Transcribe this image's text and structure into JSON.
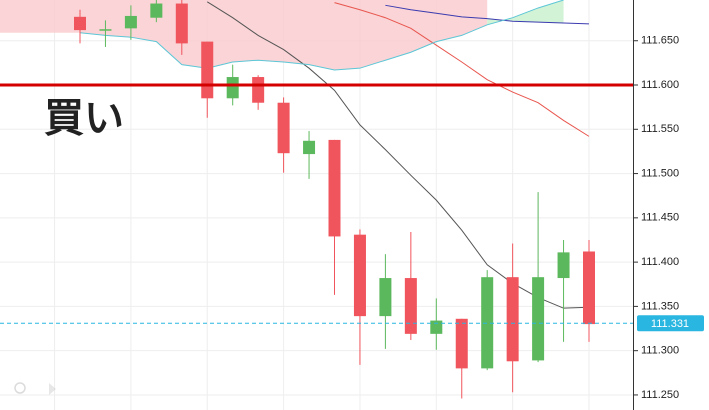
{
  "chart_data": {
    "type": "candlestick",
    "candles": {
      "open": [
        111.677,
        111.663,
        111.664,
        111.676,
        111.692,
        111.649,
        111.585,
        111.609,
        111.58,
        111.522,
        111.538,
        111.431,
        111.339,
        111.382,
        111.319,
        111.336,
        111.28,
        111.383,
        111.289,
        111.382,
        111.412
      ],
      "high": [
        111.685,
        111.673,
        111.69,
        111.696,
        111.696,
        111.649,
        111.623,
        111.611,
        111.586,
        111.548,
        111.538,
        111.437,
        111.409,
        111.434,
        111.359,
        111.336,
        111.391,
        111.421,
        111.479,
        111.425,
        111.425
      ],
      "low": [
        111.647,
        111.643,
        111.651,
        111.671,
        111.634,
        111.563,
        111.577,
        111.572,
        111.501,
        111.494,
        111.363,
        111.284,
        111.302,
        111.312,
        111.301,
        111.246,
        111.278,
        111.253,
        111.287,
        111.31,
        111.31
      ],
      "close": [
        111.662,
        111.663,
        111.678,
        111.692,
        111.647,
        111.585,
        111.609,
        111.58,
        111.523,
        111.537,
        111.429,
        111.339,
        111.382,
        111.319,
        111.334,
        111.28,
        111.383,
        111.288,
        111.383,
        111.411,
        111.33
      ],
      "up_color": "#5cb85c",
      "down_color": "#f0545c"
    },
    "lines": [
      {
        "color": "#555555",
        "values": [
          null,
          null,
          null,
          null,
          null,
          111.694,
          111.676,
          111.656,
          111.64,
          111.619,
          111.594,
          111.555,
          111.527,
          111.498,
          111.47,
          111.436,
          111.397,
          111.376,
          111.36,
          111.348,
          111.349
        ]
      },
      {
        "color": "#e8554e",
        "values": [
          null,
          null,
          null,
          null,
          null,
          null,
          null,
          null,
          null,
          null,
          111.693,
          111.685,
          111.676,
          111.664,
          111.645,
          111.626,
          111.606,
          111.592,
          111.58,
          111.56,
          111.542
        ]
      },
      {
        "color": "#3b3bb0",
        "values": [
          null,
          null,
          null,
          null,
          null,
          null,
          null,
          null,
          null,
          null,
          null,
          null,
          111.69,
          111.685,
          111.681,
          111.677,
          111.675,
          111.672,
          111.671,
          111.67,
          111.669
        ]
      },
      {
        "color": "#5cc6d6",
        "values": [
          111.659,
          111.656,
          111.654,
          111.649,
          111.623,
          111.619,
          111.626,
          111.628,
          111.626,
          111.623,
          111.617,
          111.619,
          111.628,
          111.637,
          111.649,
          111.656,
          111.668,
          111.676,
          111.687,
          111.696,
          null
        ]
      }
    ],
    "ylim": [
      111.233,
      111.696
    ],
    "yticks": [
      {
        "value": 111.25,
        "label": "111.250"
      },
      {
        "value": 111.3,
        "label": "111.300"
      },
      {
        "value": 111.35,
        "label": "111.350"
      },
      {
        "value": 111.4,
        "label": "111.400"
      },
      {
        "value": 111.45,
        "label": "111.450"
      },
      {
        "value": 111.5,
        "label": "111.500"
      },
      {
        "value": 111.55,
        "label": "111.550"
      },
      {
        "value": 111.6,
        "label": "111.600"
      },
      {
        "value": 111.65,
        "label": "111.650"
      }
    ],
    "grid": true,
    "hline": {
      "value": 111.6,
      "color": "#d40000",
      "label": "買い"
    },
    "last_price": {
      "value": 111.331,
      "color": "#29b6e0"
    }
  }
}
